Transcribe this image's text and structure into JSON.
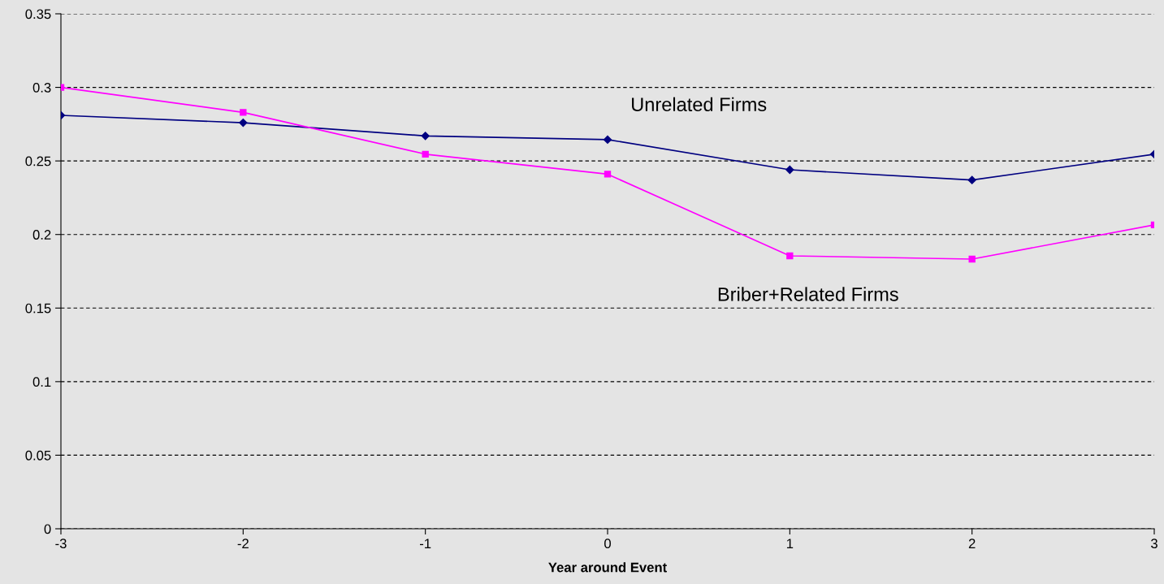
{
  "chart_data": {
    "type": "line",
    "xlabel": "Year around Event",
    "x": [
      -3,
      -2,
      -1,
      0,
      1,
      2,
      3
    ],
    "series": [
      {
        "name": "Unrelated Firms",
        "color": "#000080",
        "marker": "diamond",
        "values": [
          0.281,
          0.276,
          0.267,
          0.2645,
          0.244,
          0.237,
          0.2546
        ]
      },
      {
        "name": "Briber+Related Firms",
        "color": "#ff00ff",
        "marker": "square",
        "values": [
          0.3,
          0.283,
          0.2546,
          0.241,
          0.1855,
          0.1833,
          0.2065
        ]
      }
    ],
    "xlim": [
      -3,
      3
    ],
    "xticks": [
      -3,
      -2,
      -1,
      0,
      1,
      2,
      3
    ],
    "ylim": [
      0,
      0.35
    ],
    "yticks": [
      0,
      0.05,
      0.1,
      0.15,
      0.2,
      0.25,
      0.3,
      0.35
    ],
    "grid": "y",
    "line_style": "solid",
    "legend": false
  }
}
